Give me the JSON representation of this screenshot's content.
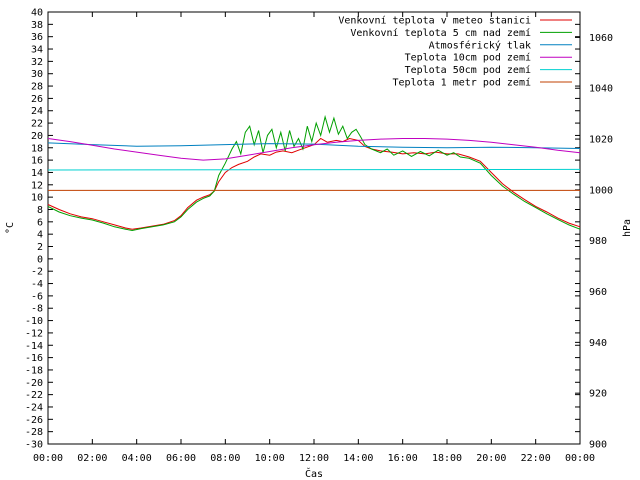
{
  "chart_data": {
    "type": "line",
    "xlabel": "Čas",
    "ylabel": "°C",
    "y2label": "hPa",
    "x_ticks": [
      "00:00",
      "02:00",
      "04:00",
      "06:00",
      "08:00",
      "10:00",
      "12:00",
      "14:00",
      "16:00",
      "18:00",
      "20:00",
      "22:00",
      "00:00"
    ],
    "xlim_hours": [
      0,
      24
    ],
    "ylim": [
      -30,
      40
    ],
    "y_ticks": [
      40,
      38,
      36,
      34,
      32,
      30,
      28,
      26,
      24,
      22,
      20,
      18,
      16,
      14,
      12,
      10,
      8,
      6,
      4,
      2,
      0,
      -2,
      -4,
      -6,
      -8,
      -10,
      -12,
      -14,
      -16,
      -18,
      -20,
      -22,
      -24,
      -26,
      -28,
      -30
    ],
    "y2lim": [
      900,
      1070
    ],
    "y2_ticks": [
      1060,
      1040,
      1020,
      1000,
      980,
      960,
      940,
      920,
      900
    ],
    "grid": false,
    "legend_position": "top-right",
    "series": [
      {
        "name": "Venkovní teplota v meteo stanici",
        "color": "#e00000",
        "axis": "left",
        "points": [
          [
            0,
            8.8
          ],
          [
            0.5,
            8.0
          ],
          [
            1,
            7.3
          ],
          [
            1.5,
            6.8
          ],
          [
            2,
            6.5
          ],
          [
            2.5,
            6.0
          ],
          [
            3,
            5.5
          ],
          [
            3.5,
            5.0
          ],
          [
            3.8,
            4.8
          ],
          [
            4.2,
            5.0
          ],
          [
            4.7,
            5.3
          ],
          [
            5.2,
            5.6
          ],
          [
            5.7,
            6.2
          ],
          [
            6,
            7.0
          ],
          [
            6.3,
            8.3
          ],
          [
            6.7,
            9.5
          ],
          [
            7,
            10.0
          ],
          [
            7.3,
            10.4
          ],
          [
            7.5,
            11.0
          ],
          [
            7.7,
            12.5
          ],
          [
            8,
            14.0
          ],
          [
            8.3,
            14.8
          ],
          [
            8.6,
            15.3
          ],
          [
            9,
            15.8
          ],
          [
            9.3,
            16.5
          ],
          [
            9.6,
            17.0
          ],
          [
            10,
            16.8
          ],
          [
            10.3,
            17.3
          ],
          [
            10.6,
            17.5
          ],
          [
            11,
            17.2
          ],
          [
            11.3,
            17.6
          ],
          [
            11.6,
            18.0
          ],
          [
            12,
            18.5
          ],
          [
            12.3,
            19.5
          ],
          [
            12.6,
            18.9
          ],
          [
            13,
            19.2
          ],
          [
            13.3,
            19.0
          ],
          [
            13.6,
            19.5
          ],
          [
            14,
            19.2
          ],
          [
            14.3,
            18.2
          ],
          [
            14.6,
            17.8
          ],
          [
            15,
            17.5
          ],
          [
            15.5,
            17.3
          ],
          [
            16,
            17.0
          ],
          [
            16.5,
            17.2
          ],
          [
            17,
            17.0
          ],
          [
            17.5,
            17.3
          ],
          [
            18,
            17.0
          ],
          [
            18.5,
            17.0
          ],
          [
            19,
            16.5
          ],
          [
            19.5,
            15.8
          ],
          [
            20,
            14.0
          ],
          [
            20.5,
            12.2
          ],
          [
            21,
            10.8
          ],
          [
            21.5,
            9.6
          ],
          [
            22,
            8.5
          ],
          [
            22.5,
            7.6
          ],
          [
            23,
            6.6
          ],
          [
            23.5,
            5.8
          ],
          [
            24,
            5.2
          ]
        ]
      },
      {
        "name": "Venkovní teplota 5 cm nad zemí",
        "color": "#00a000",
        "axis": "left",
        "points": [
          [
            0,
            8.5
          ],
          [
            0.5,
            7.6
          ],
          [
            1,
            7.0
          ],
          [
            1.5,
            6.6
          ],
          [
            2,
            6.3
          ],
          [
            2.5,
            5.8
          ],
          [
            3,
            5.2
          ],
          [
            3.5,
            4.8
          ],
          [
            3.8,
            4.6
          ],
          [
            4.2,
            4.9
          ],
          [
            4.7,
            5.2
          ],
          [
            5.2,
            5.5
          ],
          [
            5.7,
            6.0
          ],
          [
            6,
            6.8
          ],
          [
            6.3,
            8.0
          ],
          [
            6.7,
            9.2
          ],
          [
            7,
            9.8
          ],
          [
            7.3,
            10.2
          ],
          [
            7.5,
            11.0
          ],
          [
            7.7,
            13.5
          ],
          [
            8,
            15.5
          ],
          [
            8.3,
            17.8
          ],
          [
            8.5,
            19.0
          ],
          [
            8.7,
            17.0
          ],
          [
            8.9,
            20.5
          ],
          [
            9.1,
            21.5
          ],
          [
            9.3,
            18.5
          ],
          [
            9.5,
            20.8
          ],
          [
            9.7,
            17.2
          ],
          [
            9.9,
            20.0
          ],
          [
            10.1,
            21.0
          ],
          [
            10.3,
            18.0
          ],
          [
            10.5,
            20.5
          ],
          [
            10.7,
            17.5
          ],
          [
            10.9,
            20.8
          ],
          [
            11.1,
            18.2
          ],
          [
            11.3,
            19.5
          ],
          [
            11.5,
            17.8
          ],
          [
            11.7,
            21.5
          ],
          [
            11.9,
            19.0
          ],
          [
            12.1,
            22.0
          ],
          [
            12.3,
            20.0
          ],
          [
            12.5,
            23.0
          ],
          [
            12.7,
            20.5
          ],
          [
            12.9,
            22.8
          ],
          [
            13.1,
            20.2
          ],
          [
            13.3,
            21.5
          ],
          [
            13.5,
            19.5
          ],
          [
            13.7,
            20.5
          ],
          [
            13.9,
            21.0
          ],
          [
            14.1,
            19.8
          ],
          [
            14.3,
            18.5
          ],
          [
            14.6,
            17.8
          ],
          [
            15,
            17.2
          ],
          [
            15.3,
            17.8
          ],
          [
            15.6,
            16.8
          ],
          [
            16,
            17.5
          ],
          [
            16.4,
            16.6
          ],
          [
            16.8,
            17.4
          ],
          [
            17.2,
            16.7
          ],
          [
            17.6,
            17.6
          ],
          [
            18,
            16.8
          ],
          [
            18.3,
            17.2
          ],
          [
            18.6,
            16.5
          ],
          [
            19,
            16.3
          ],
          [
            19.5,
            15.5
          ],
          [
            20,
            13.5
          ],
          [
            20.5,
            11.8
          ],
          [
            21,
            10.5
          ],
          [
            21.5,
            9.3
          ],
          [
            22,
            8.3
          ],
          [
            22.5,
            7.3
          ],
          [
            23,
            6.4
          ],
          [
            23.5,
            5.5
          ],
          [
            24,
            4.8
          ]
        ]
      },
      {
        "name": "Atmosférický tlak",
        "color": "#0080c0",
        "axis": "right",
        "points": [
          [
            0,
            1018.5
          ],
          [
            2,
            1017.8
          ],
          [
            4,
            1017.2
          ],
          [
            6,
            1017.4
          ],
          [
            8,
            1017.8
          ],
          [
            10,
            1018.2
          ],
          [
            12,
            1018.0
          ],
          [
            14,
            1017.2
          ],
          [
            16,
            1016.8
          ],
          [
            18,
            1016.6
          ],
          [
            20,
            1016.8
          ],
          [
            22,
            1016.6
          ],
          [
            24,
            1016.3
          ]
        ]
      },
      {
        "name": "Teplota 10cm pod zemí",
        "color": "#c000c0",
        "axis": "left",
        "points": [
          [
            0,
            19.5
          ],
          [
            1,
            19.0
          ],
          [
            2,
            18.4
          ],
          [
            3,
            17.8
          ],
          [
            4,
            17.3
          ],
          [
            5,
            16.8
          ],
          [
            6,
            16.3
          ],
          [
            7,
            16.0
          ],
          [
            8,
            16.2
          ],
          [
            9,
            16.8
          ],
          [
            10,
            17.4
          ],
          [
            11,
            18.0
          ],
          [
            12,
            18.5
          ],
          [
            13,
            18.9
          ],
          [
            14,
            19.2
          ],
          [
            15,
            19.4
          ],
          [
            16,
            19.5
          ],
          [
            17,
            19.5
          ],
          [
            18,
            19.4
          ],
          [
            19,
            19.2
          ],
          [
            20,
            18.9
          ],
          [
            21,
            18.5
          ],
          [
            22,
            18.1
          ],
          [
            23,
            17.6
          ],
          [
            24,
            17.2
          ]
        ]
      },
      {
        "name": "Teplota 50cm pod zemí",
        "color": "#00d0d0",
        "axis": "left",
        "points": [
          [
            0,
            14.4
          ],
          [
            24,
            14.5
          ]
        ]
      },
      {
        "name": "Teplota 1 metr pod zemí",
        "color": "#c04000",
        "axis": "left",
        "points": [
          [
            0,
            11.1
          ],
          [
            24,
            11.1
          ]
        ]
      }
    ]
  }
}
